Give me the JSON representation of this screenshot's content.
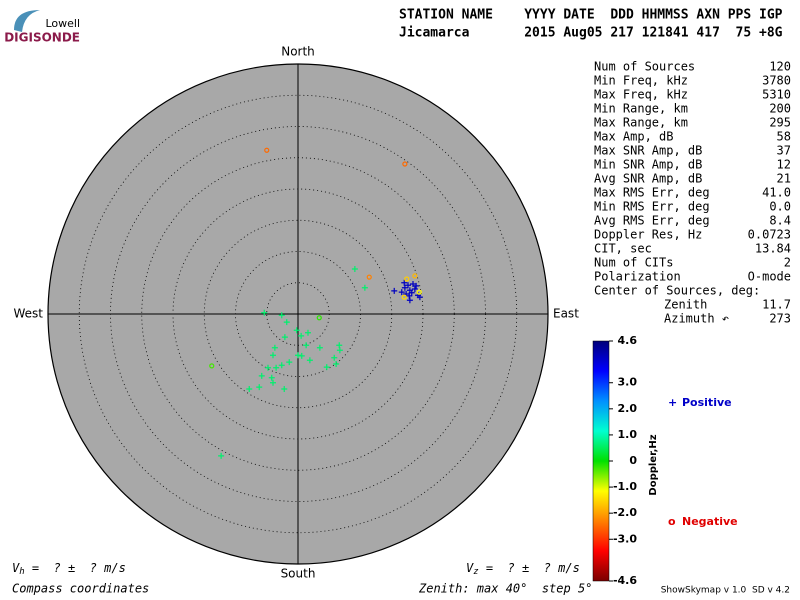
{
  "chart_data": {
    "type": "skymap",
    "logo": {
      "top": "Lowell",
      "bottom": "DIGISONDE"
    },
    "header": [
      "STATION NAME    YYYY DATE  DDD HHMMSS AXN PPS IGP",
      "Jicamarca       2015 Aug05 217 121841 417  75 +8G"
    ],
    "directions": {
      "north": "North",
      "south": "South",
      "east": "East",
      "west": "West"
    },
    "rlim": [
      0,
      40
    ],
    "rticks": [
      5,
      10,
      15,
      20,
      25,
      30,
      35,
      40
    ],
    "stats": [
      {
        "label": "Num of Sources",
        "value": "120"
      },
      {
        "label": "Min Freq, kHz",
        "value": "3780"
      },
      {
        "label": "Max Freq, kHz",
        "value": "5310"
      },
      {
        "label": "Min Range, km",
        "value": "200"
      },
      {
        "label": "Max Range, km",
        "value": "295"
      },
      {
        "label": "Max Amp, dB",
        "value": "58"
      },
      {
        "label": "Max SNR Amp, dB",
        "value": "37"
      },
      {
        "label": "Min SNR Amp, dB",
        "value": "12"
      },
      {
        "label": "Avg SNR Amp, dB",
        "value": "21"
      },
      {
        "label": "Max RMS Err, deg",
        "value": "41.0"
      },
      {
        "label": "Min RMS Err, deg",
        "value": "0.0"
      },
      {
        "label": "Avg RMS Err, deg",
        "value": "8.4"
      },
      {
        "label": "Doppler Res, Hz",
        "value": "0.0723"
      },
      {
        "label": "CIT, sec",
        "value": "13.84"
      },
      {
        "label": "Num of CITs",
        "value": "2"
      },
      {
        "label": "Polarization",
        "value": "O-mode"
      },
      {
        "label": "Center of Sources, deg:",
        "value": ""
      },
      {
        "label": "Zenith",
        "value": "11.7"
      },
      {
        "label": "Azimuth ↶",
        "value": "273"
      }
    ],
    "colorbar": {
      "label": "Doppler,Hz",
      "clim": [
        -4.6,
        4.6
      ],
      "ticks": [
        4.6,
        {
          "value": 3,
          "label": "3.0"
        },
        {
          "value": 2,
          "label": "2.0"
        },
        {
          "value": 1,
          "label": "1.0"
        },
        0,
        {
          "value": -1,
          "label": "-1.0"
        },
        {
          "value": -2,
          "label": "-2.0"
        },
        {
          "value": -3,
          "label": "-3.0"
        },
        -4.6
      ],
      "colormap": [
        "#7a0000",
        "#ff0000",
        "#ff8000",
        "#ffff00",
        "#00e000",
        "#00ffd0",
        "#0090ff",
        "#0000ff",
        "#00007a"
      ]
    },
    "legend": [
      {
        "marker": "+",
        "name": "Positive",
        "color": "#0000c8"
      },
      {
        "marker": "o",
        "name": "Negative",
        "color": "#e00000"
      }
    ],
    "points": {
      "x": [
        15.4,
        17.1,
        17.6,
        17.9,
        18.2,
        18.7,
        19.2,
        17.9,
        17.3,
        18.4,
        19.5,
        16.6,
        17.8,
        18.9,
        17.0,
        17.4,
        18.7,
        17.0,
        19.4,
        -5.0,
        17.1,
        11.4,
        -13.8,
        3.4,
        9.1,
        10.7,
        -5.4,
        -2.6,
        -1.8,
        -0.2,
        -2.1,
        0.5,
        1.6,
        1.3,
        3.5,
        5.8,
        6.1,
        4.6,
        6.7,
        6.6,
        -3.7,
        -4.0,
        -2.6,
        -1.4,
        -3.5,
        -4.8,
        -5.8,
        -7.8,
        -6.2,
        -4.2,
        -4.0,
        -2.2,
        0.6,
        1.9,
        -12.3,
        0.0
      ],
      "y": [
        3.7,
        4.2,
        4.6,
        3.8,
        3.4,
        4.0,
        3.0,
        2.2,
        3.2,
        4.8,
        2.7,
        3.5,
        2.9,
        4.5,
        5.0,
        5.6,
        6.1,
        2.7,
        3.5,
        26.2,
        24.0,
        5.9,
        -8.3,
        -0.6,
        7.2,
        4.2,
        0.2,
        -0.2,
        -1.3,
        -2.6,
        -3.7,
        -3.5,
        -3.0,
        -5.0,
        -5.4,
        -7.0,
        -8.0,
        -8.5,
        -5.8,
        -5.0,
        -5.4,
        -6.6,
        -8.2,
        -7.7,
        -8.6,
        -8.6,
        -9.9,
        -12.0,
        -11.7,
        -10.2,
        -11.0,
        -12.0,
        -6.7,
        -7.4,
        -22.7,
        -6.6
      ],
      "doppler": [
        4.0,
        4.0,
        4.0,
        4.0,
        4.0,
        4.0,
        4.0,
        4.0,
        4.0,
        4.0,
        4.0,
        4.0,
        4.0,
        4.0,
        4.0,
        -1.6,
        -1.8,
        -1.5,
        -1.2,
        -2.5,
        -2.5,
        -2.3,
        -0.3,
        -0.2,
        0.6,
        0.6,
        0.6,
        0.6,
        0.6,
        0.6,
        0.6,
        0.6,
        0.6,
        0.6,
        0.6,
        0.6,
        0.6,
        0.6,
        0.6,
        0.6,
        0.6,
        0.6,
        0.6,
        0.6,
        0.6,
        0.6,
        0.6,
        0.6,
        0.6,
        0.6,
        0.6,
        0.6,
        0.6,
        0.6,
        0.6,
        0.6
      ]
    },
    "vh": {
      "symbol": "V",
      "sub": "h",
      "text": " =  ? ±  ? m/s"
    },
    "vz": {
      "symbol": "V",
      "sub": "z",
      "text": " =  ? ±  ? m/s"
    },
    "footer_left": "Compass coordinates",
    "footer_center": "Zenith: max 40°  step 5°",
    "footer_right": "ShowSkymap v 1.0  SD v 4.2"
  }
}
